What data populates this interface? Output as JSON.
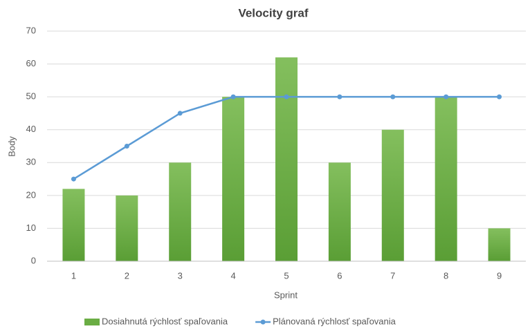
{
  "chart_data": {
    "type": "bar",
    "title": "Velocity graf",
    "y_label": "Body",
    "x_label": "Sprint",
    "categories": [
      "1",
      "2",
      "3",
      "4",
      "5",
      "6",
      "7",
      "8",
      "9"
    ],
    "series": [
      {
        "name": "Dosiahnutá rýchlosť spaľovania",
        "color": "#6aad44",
        "type": "bar",
        "values": [
          22,
          20,
          30,
          50,
          62,
          30,
          40,
          50,
          10
        ]
      },
      {
        "name": "Plánovaná rýchlosť spaľovania",
        "color": "#5b9bd5",
        "type": "line",
        "values": [
          25,
          35,
          45,
          50,
          50,
          50,
          50,
          50,
          50
        ]
      }
    ],
    "ylim": [
      0,
      70
    ],
    "yticks": [
      0,
      10,
      20,
      30,
      40,
      50,
      60,
      70
    ],
    "grid": true,
    "legend": "bottom"
  }
}
